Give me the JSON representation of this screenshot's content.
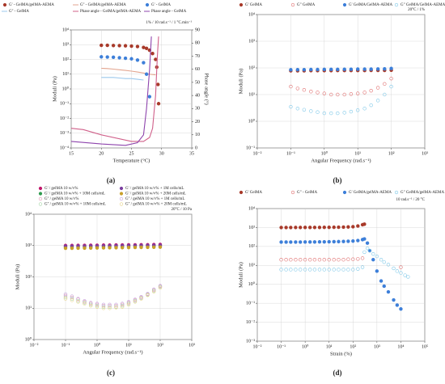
{
  "chart_data": [
    {
      "type": "scatter",
      "label": "(a)",
      "annotation": "1% / 10 rad.s⁻¹ / 1 °C.min⁻¹",
      "x_label": "Temperature (°C)",
      "y_label": "Moduli (Pa)",
      "y2_label": "Phase angle (°)",
      "xlim": [
        15,
        35
      ],
      "xticks": [
        15,
        20,
        25,
        30,
        35
      ],
      "ylim": [
        0.0001,
        10000
      ],
      "yscale": "log",
      "yticks": [
        {
          "value": 0.0001,
          "label": "10⁻⁴"
        },
        {
          "value": 0.001,
          "label": "10⁻³"
        },
        {
          "value": 0.01,
          "label": "10⁻²"
        },
        {
          "value": 0.1,
          "label": "10⁻¹"
        },
        {
          "value": 1,
          "label": "10⁰"
        },
        {
          "value": 10,
          "label": "10¹"
        },
        {
          "value": 100,
          "label": "10²"
        },
        {
          "value": 1000,
          "label": "10³"
        },
        {
          "value": 10000,
          "label": "10⁴"
        }
      ],
      "y2lim": [
        0,
        90
      ],
      "y2ticks": [
        0,
        10,
        20,
        30,
        40,
        50,
        60,
        70,
        80,
        90
      ],
      "grid": true,
      "series": [
        {
          "name": "G' - GelMA/gelMA-AEMA",
          "color": "#a83a2a",
          "marker": "filled",
          "x": [
            20,
            21,
            22,
            23,
            24,
            25,
            26,
            27,
            27.5,
            28,
            28.5,
            29,
            29.2,
            29.4,
            29.5
          ],
          "values": [
            900,
            900,
            880,
            860,
            840,
            800,
            750,
            650,
            560,
            420,
            250,
            100,
            30,
            2,
            0.1
          ]
        },
        {
          "name": "G'' - GelMA/gelMA-AEMA",
          "color": "#e3a58f",
          "marker": "line",
          "x": [
            20,
            21,
            22,
            23,
            24,
            25,
            26,
            27,
            28,
            29
          ],
          "values": [
            25,
            24,
            22,
            20,
            18,
            16,
            14,
            12,
            10,
            9
          ]
        },
        {
          "name": "G' - GelMA",
          "color": "#3d7fd9",
          "marker": "filled",
          "x": [
            20,
            21,
            22,
            23,
            24,
            25,
            26,
            27,
            27.5,
            28
          ],
          "values": [
            150,
            145,
            140,
            130,
            120,
            110,
            90,
            60,
            10,
            0.3
          ]
        },
        {
          "name": "G'' - GelMA",
          "color": "#9cc8ec",
          "marker": "line",
          "x": [
            20,
            21,
            22,
            23,
            24,
            25,
            26,
            27
          ],
          "values": [
            6,
            6,
            6,
            5.5,
            5,
            5,
            4.5,
            4
          ]
        },
        {
          "name": "Phase angle - GelMA/gelMA-AEMA",
          "color": "#d0608a",
          "marker": "line",
          "axis": "y2",
          "x": [
            15,
            17,
            20,
            25,
            27,
            28,
            28.5,
            29,
            29.3,
            29.5
          ],
          "values": [
            15,
            14,
            10,
            5,
            5,
            8,
            15,
            40,
            70,
            85
          ]
        },
        {
          "name": "Phase angle - GelMA",
          "color": "#8e44ad",
          "marker": "line",
          "axis": "y2",
          "x": [
            15,
            20,
            24,
            26,
            27,
            27.5,
            28,
            28.3
          ],
          "values": [
            5,
            3,
            2,
            4,
            10,
            30,
            60,
            85
          ]
        }
      ]
    },
    {
      "type": "scatter",
      "label": "(b)",
      "annotation": "20°C / 1%",
      "x_label": "Angular Frequency (rad.s⁻¹)",
      "y_label": "Moduli (Pa)",
      "xscale": "log",
      "xlim": [
        0.01,
        1000
      ],
      "xticks": [
        {
          "value": 0.01,
          "label": "10⁻²"
        },
        {
          "value": 0.1,
          "label": "10⁻¹"
        },
        {
          "value": 1,
          "label": "10⁰"
        },
        {
          "value": 10,
          "label": "10¹"
        },
        {
          "value": 100,
          "label": "10²"
        },
        {
          "value": 1000,
          "label": "10³"
        }
      ],
      "yscale": "log",
      "ylim": [
        0.1,
        10000
      ],
      "yticks": [
        {
          "value": 0.1,
          "label": "10⁻¹"
        },
        {
          "value": 1,
          "label": "10⁰"
        },
        {
          "value": 10,
          "label": "10¹"
        },
        {
          "value": 100,
          "label": "10²"
        },
        {
          "value": 1000,
          "label": "10³"
        },
        {
          "value": 10000,
          "label": "10⁴"
        }
      ],
      "grid": true,
      "x": [
        0.1,
        0.16,
        0.25,
        0.4,
        0.63,
        1,
        1.6,
        2.5,
        4,
        6.3,
        10,
        16,
        25,
        40,
        63,
        100
      ],
      "series": [
        {
          "name": "G' GelMA",
          "color": "#a83a2a",
          "marker": "filled",
          "values": [
            78,
            78,
            78,
            79,
            79,
            79,
            79,
            80,
            80,
            80,
            80,
            80,
            81,
            81,
            81,
            82
          ]
        },
        {
          "name": "G\" GelMA",
          "color": "#e07070",
          "marker": "open",
          "values": [
            20,
            17,
            15,
            13,
            12,
            11,
            10,
            10,
            10,
            10.5,
            11,
            12,
            14,
            18,
            25,
            40
          ]
        },
        {
          "name": "G' GelMA/GelMA-AEMA",
          "color": "#3d7fd9",
          "marker": "filled",
          "values": [
            85,
            86,
            86,
            87,
            87,
            88,
            88,
            88,
            89,
            89,
            90,
            90,
            90,
            91,
            92,
            95
          ]
        },
        {
          "name": "G\" GelMA/GelMA-AEMA",
          "color": "#7fc8e8",
          "marker": "open",
          "values": [
            3.5,
            3,
            2.7,
            2.4,
            2.2,
            2,
            2,
            2,
            2.1,
            2.3,
            2.6,
            3,
            4,
            6,
            10,
            20
          ]
        }
      ]
    },
    {
      "type": "scatter",
      "label": "(c)",
      "annotation": "20°C / 10 Pa",
      "x_label": "Angular Frequency (rad.s⁻¹)",
      "y_label": "Moduli (Pa)",
      "xscale": "log",
      "xlim": [
        0.01,
        1000
      ],
      "xticks": [
        {
          "value": 0.01,
          "label": "10⁻²"
        },
        {
          "value": 0.1,
          "label": "10⁻¹"
        },
        {
          "value": 1,
          "label": "10⁰"
        },
        {
          "value": 10,
          "label": "10¹"
        },
        {
          "value": 100,
          "label": "10²"
        },
        {
          "value": 1000,
          "label": "10³"
        }
      ],
      "yscale": "log",
      "ylim": [
        1,
        10000
      ],
      "yticks": [
        {
          "value": 1,
          "label": "10⁰"
        },
        {
          "value": 10,
          "label": "10¹"
        },
        {
          "value": 100,
          "label": "10²"
        },
        {
          "value": 1000,
          "label": "10³"
        },
        {
          "value": 10000,
          "label": "10⁴"
        }
      ],
      "grid": true,
      "x": [
        0.1,
        0.16,
        0.25,
        0.4,
        0.63,
        1,
        1.6,
        2.5,
        4,
        6.3,
        10,
        16,
        25,
        40,
        63,
        100
      ],
      "series": [
        {
          "name": "G' / gelMA 10 w/v%",
          "color": "#c2186b",
          "marker": "filled",
          "values": [
            1000,
            1000,
            1010,
            1010,
            1020,
            1020,
            1030,
            1030,
            1040,
            1040,
            1050,
            1050,
            1060,
            1060,
            1070,
            1080
          ]
        },
        {
          "name": "G' / gelMA 10 w/v% + 10M cells/mL",
          "color": "#2e9b4e",
          "marker": "filled",
          "values": [
            900,
            900,
            905,
            910,
            915,
            920,
            925,
            930,
            935,
            940,
            945,
            950,
            955,
            960,
            965,
            970
          ]
        },
        {
          "name": "G'' / gelMA 10 w/v%",
          "color": "#e59ab8",
          "marker": "open",
          "values": [
            25,
            22,
            19,
            16,
            14,
            13,
            12,
            12,
            12,
            13,
            15,
            18,
            22,
            28,
            38,
            50
          ]
        },
        {
          "name": "G'' / gelMA 10 w/v% + 10M cells/mL",
          "color": "#a5d6a7",
          "marker": "open",
          "values": [
            22,
            20,
            17,
            15,
            13,
            12,
            11,
            11,
            11,
            12,
            14,
            17,
            21,
            27,
            36,
            48
          ]
        },
        {
          "name": "G' / gelMA 10 w/v% + 1M cells/mL",
          "color": "#7b3fa0",
          "marker": "filled",
          "values": [
            950,
            955,
            960,
            960,
            965,
            970,
            975,
            980,
            985,
            990,
            995,
            1000,
            1005,
            1010,
            1015,
            1020
          ]
        },
        {
          "name": "G' / gelMA 10 w/v% + 20M cells/mL",
          "color": "#c9a02a",
          "marker": "filled",
          "values": [
            820,
            820,
            825,
            830,
            835,
            840,
            845,
            850,
            855,
            860,
            865,
            870,
            875,
            880,
            885,
            890
          ]
        },
        {
          "name": "G'' / gelMA 10 w/v% + 1M cells/mL",
          "color": "#c4a3dc",
          "marker": "open",
          "values": [
            28,
            24,
            20,
            17,
            15,
            14,
            13,
            13,
            13,
            14,
            16,
            19,
            23,
            29,
            40,
            52
          ]
        },
        {
          "name": "G'' / gelMA 10 w/v% + 20M cells/mL",
          "color": "#e8d48a",
          "marker": "open",
          "values": [
            20,
            18,
            16,
            14,
            12,
            11,
            10,
            10,
            10.5,
            11,
            13,
            16,
            20,
            26,
            34,
            45
          ]
        }
      ]
    },
    {
      "type": "scatter",
      "label": "(d)",
      "annotation": "10 rad.s⁻¹ / 20 °C",
      "x_label": "Strain (%)",
      "y_label": "Moduli (Pa)",
      "xscale": "log",
      "xlim": [
        0.01,
        100000
      ],
      "xticks": [
        {
          "value": 0.01,
          "label": "10⁻²"
        },
        {
          "value": 0.1,
          "label": "10⁻¹"
        },
        {
          "value": 1,
          "label": "10⁰"
        },
        {
          "value": 10,
          "label": "10¹"
        },
        {
          "value": 100,
          "label": "10²"
        },
        {
          "value": 1000,
          "label": "10³"
        },
        {
          "value": 10000,
          "label": "10⁴"
        },
        {
          "value": 100000,
          "label": "10⁵"
        }
      ],
      "yscale": "log",
      "ylim": [
        0.001,
        10000
      ],
      "yticks": [
        {
          "value": 0.001,
          "label": "10⁻³"
        },
        {
          "value": 0.01,
          "label": "10⁻²"
        },
        {
          "value": 0.1,
          "label": "10⁻¹"
        },
        {
          "value": 1,
          "label": "10⁰"
        },
        {
          "value": 10,
          "label": "10¹"
        },
        {
          "value": 100,
          "label": "10²"
        },
        {
          "value": 1000,
          "label": "10³"
        },
        {
          "value": 10000,
          "label": "10⁴"
        }
      ],
      "grid": true,
      "series": [
        {
          "name": "G' GelMA",
          "color": "#a83a2a",
          "marker": "filled",
          "x": [
            0.1,
            0.16,
            0.25,
            0.4,
            0.63,
            1,
            1.6,
            2.5,
            4,
            6.3,
            10,
            16,
            25,
            40,
            63,
            100,
            160,
            250,
            300
          ],
          "values": [
            1000,
            1000,
            1000,
            1005,
            1005,
            1010,
            1010,
            1015,
            1015,
            1020,
            1020,
            1030,
            1040,
            1050,
            1070,
            1100,
            1200,
            1400,
            1500
          ]
        },
        {
          "name": "G\" - GelMA",
          "color": "#e07070",
          "marker": "open",
          "x": [
            0.1,
            0.16,
            0.25,
            0.4,
            0.63,
            1,
            1.6,
            2.5,
            4,
            6.3,
            10,
            16,
            25,
            40,
            63,
            100,
            160,
            250,
            10000
          ],
          "values": [
            20,
            20,
            20,
            20,
            20,
            20,
            20,
            20,
            20,
            20,
            20,
            20,
            20,
            20,
            21,
            21,
            22,
            24,
            8
          ]
        },
        {
          "name": "G' GelMA/gelMA-AEMA",
          "color": "#3d7fd9",
          "marker": "filled",
          "x": [
            0.1,
            0.16,
            0.25,
            0.4,
            0.63,
            1,
            1.6,
            2.5,
            4,
            6.3,
            10,
            16,
            25,
            40,
            63,
            100,
            160,
            250,
            300,
            400,
            500,
            700,
            1000,
            1500,
            2000,
            3000,
            5000,
            7000,
            10000
          ],
          "values": [
            170,
            170,
            170,
            171,
            171,
            172,
            172,
            173,
            174,
            175,
            176,
            178,
            180,
            183,
            187,
            193,
            205,
            230,
            250,
            150,
            60,
            20,
            5,
            1.5,
            0.8,
            0.4,
            0.15,
            0.08,
            0.05
          ]
        },
        {
          "name": "G\" GelMA/gelMA-AEMA",
          "color": "#7fc8e8",
          "marker": "open",
          "x": [
            0.1,
            0.16,
            0.25,
            0.4,
            0.63,
            1,
            1.6,
            2.5,
            4,
            6.3,
            10,
            16,
            25,
            40,
            63,
            100,
            160,
            250,
            300,
            400,
            500,
            700,
            1000,
            1500,
            2000,
            3000,
            5000,
            7000,
            10000,
            15000,
            20000
          ],
          "values": [
            6,
            6,
            6,
            6,
            6,
            6,
            6,
            6,
            6,
            6,
            6,
            6,
            6,
            6,
            6,
            6,
            6.5,
            8,
            50,
            80,
            60,
            40,
            30,
            20,
            15,
            11,
            7,
            5,
            4,
            3,
            2.5
          ]
        }
      ]
    }
  ]
}
